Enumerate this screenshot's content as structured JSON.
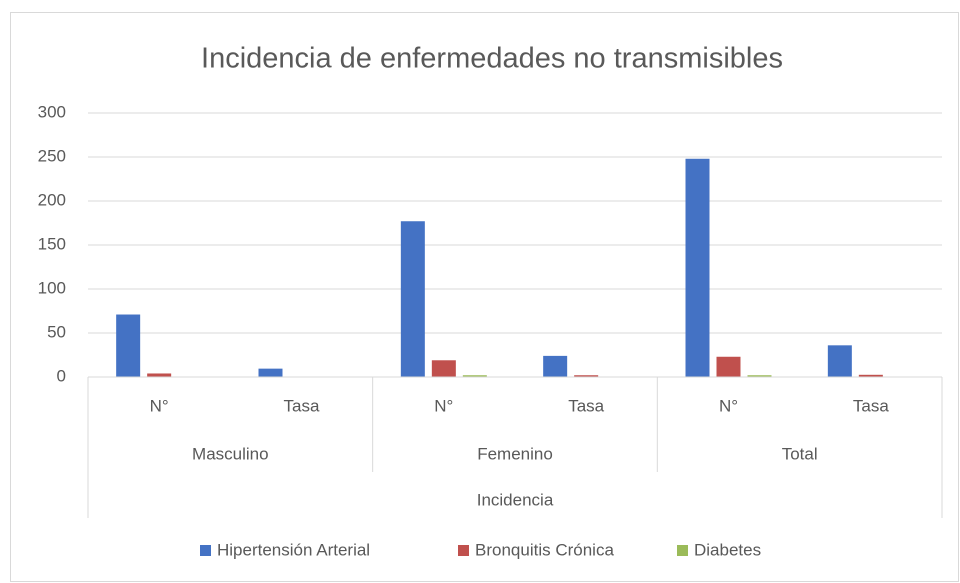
{
  "chart_data": {
    "type": "bar",
    "title": "Incidencia de enfermedades no transmisibles",
    "categories": [
      "N°",
      "Tasa",
      "N°",
      "Tasa",
      "N°",
      "Tasa"
    ],
    "category_groups": [
      "Masculino",
      "Femenino",
      "Total"
    ],
    "x_label": "Incidencia",
    "series": [
      {
        "name": "Hipertensión Arterial",
        "color": "#4472c4",
        "values": [
          71,
          9.5,
          177,
          24,
          248,
          36
        ]
      },
      {
        "name": "Bronquitis Crónica",
        "color": "#c0504d",
        "values": [
          4,
          0.5,
          19,
          2,
          23,
          2.5
        ]
      },
      {
        "name": "Diabetes",
        "color": "#9bbb59",
        "values": [
          0,
          0,
          2,
          0.3,
          2,
          0.3
        ]
      }
    ],
    "ylim": [
      0,
      300
    ],
    "yticks": [
      0,
      50,
      100,
      150,
      200,
      250,
      300
    ],
    "grid": true,
    "legend": "bottom"
  }
}
